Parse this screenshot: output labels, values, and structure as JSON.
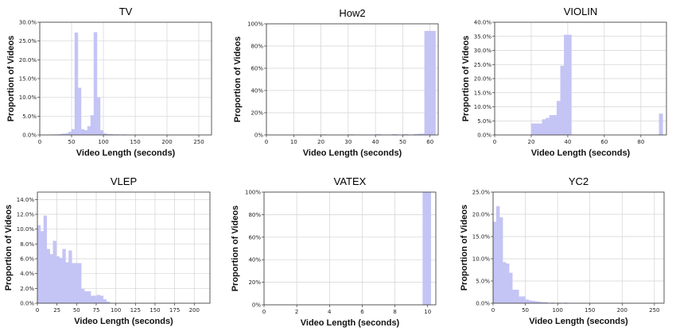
{
  "chart_data": [
    {
      "type": "bar",
      "title": "TV",
      "xlabel": "Video Length (seconds)",
      "ylabel": "Proportion of Videos",
      "xlim": [
        0,
        270
      ],
      "ylim": [
        0,
        0.3
      ],
      "xticks": [
        0,
        50,
        100,
        150,
        200,
        250
      ],
      "yticks": [
        0,
        0.05,
        0.1,
        0.15,
        0.2,
        0.25,
        0.3
      ],
      "ytick_labels": [
        "0.0%",
        "5.0%",
        "10.0%",
        "15.0%",
        "20.0%",
        "25.0%",
        "30.0%"
      ],
      "grid": true,
      "bin_width": 5,
      "bins": [
        {
          "x": 20,
          "value": 0.001
        },
        {
          "x": 25,
          "value": 0.001
        },
        {
          "x": 30,
          "value": 0.002
        },
        {
          "x": 35,
          "value": 0.003
        },
        {
          "x": 40,
          "value": 0.004
        },
        {
          "x": 45,
          "value": 0.008
        },
        {
          "x": 50,
          "value": 0.015
        },
        {
          "x": 55,
          "value": 0.272
        },
        {
          "x": 60,
          "value": 0.125
        },
        {
          "x": 65,
          "value": 0.015
        },
        {
          "x": 70,
          "value": 0.012
        },
        {
          "x": 75,
          "value": 0.023
        },
        {
          "x": 80,
          "value": 0.052
        },
        {
          "x": 85,
          "value": 0.273
        },
        {
          "x": 90,
          "value": 0.1
        },
        {
          "x": 95,
          "value": 0.012
        },
        {
          "x": 100,
          "value": 0.004
        },
        {
          "x": 105,
          "value": 0.002
        },
        {
          "x": 110,
          "value": 0.002
        },
        {
          "x": 115,
          "value": 0.001
        },
        {
          "x": 120,
          "value": 0.001
        },
        {
          "x": 130,
          "value": 0.001
        }
      ]
    },
    {
      "type": "bar",
      "title": "How2",
      "xlabel": "Video Length (seconds)",
      "ylabel": "Proportion of Videos",
      "xlim": [
        0,
        63
      ],
      "ylim": [
        0,
        1.0
      ],
      "xticks": [
        0,
        10,
        20,
        30,
        40,
        50,
        60
      ],
      "yticks": [
        0,
        0.2,
        0.4,
        0.6,
        0.8,
        1.0
      ],
      "ytick_labels": [
        "0%",
        "20%",
        "40%",
        "60%",
        "80%",
        "100%"
      ],
      "grid": true,
      "bin_width": 2,
      "bins": [
        {
          "x": 10,
          "value": 0.002
        },
        {
          "x": 20,
          "value": 0.003
        },
        {
          "x": 30,
          "value": 0.004
        },
        {
          "x": 40,
          "value": 0.005
        },
        {
          "x": 46,
          "value": 0.006
        },
        {
          "x": 50,
          "value": 0.006
        },
        {
          "x": 54,
          "value": 0.007
        },
        {
          "x": 56,
          "value": 0.01
        },
        {
          "x": 58,
          "value": 0.935
        },
        {
          "x": 60,
          "value": 0.935
        }
      ]
    },
    {
      "type": "bar",
      "title": "VIOLIN",
      "xlabel": "Video Length (seconds)",
      "ylabel": "Proportion of Videos",
      "xlim": [
        0,
        94
      ],
      "ylim": [
        0,
        0.4
      ],
      "xticks": [
        0,
        20,
        40,
        60,
        80
      ],
      "yticks": [
        0,
        0.05,
        0.1,
        0.15,
        0.2,
        0.25,
        0.3,
        0.35,
        0.4
      ],
      "ytick_labels": [
        "0.0%",
        "5.0%",
        "10.0%",
        "15.0%",
        "20.0%",
        "25.0%",
        "30.0%",
        "35.0%",
        "40.0%"
      ],
      "grid": true,
      "bin_width": 2,
      "bins": [
        {
          "x": 20,
          "value": 0.04
        },
        {
          "x": 22,
          "value": 0.04
        },
        {
          "x": 24,
          "value": 0.04
        },
        {
          "x": 26,
          "value": 0.055
        },
        {
          "x": 28,
          "value": 0.06
        },
        {
          "x": 30,
          "value": 0.07
        },
        {
          "x": 32,
          "value": 0.07
        },
        {
          "x": 34,
          "value": 0.12
        },
        {
          "x": 36,
          "value": 0.245
        },
        {
          "x": 38,
          "value": 0.355
        },
        {
          "x": 40,
          "value": 0.355
        },
        {
          "x": 90,
          "value": 0.075
        }
      ]
    },
    {
      "type": "bar",
      "title": "VLEP",
      "xlabel": "Video Length (seconds)",
      "ylabel": "Proportion of Videos",
      "xlim": [
        0,
        220
      ],
      "ylim": [
        0,
        0.15
      ],
      "xticks": [
        0,
        25,
        50,
        75,
        100,
        125,
        150,
        175,
        200
      ],
      "yticks": [
        0,
        0.02,
        0.04,
        0.06,
        0.08,
        0.1,
        0.12,
        0.14
      ],
      "ytick_labels": [
        "0.0%",
        "2.0%",
        "4.0%",
        "6.0%",
        "8.0%",
        "10.0%",
        "12.0%",
        "14.0%"
      ],
      "grid": true,
      "bin_width": 4,
      "bins": [
        {
          "x": 0,
          "value": 0.105
        },
        {
          "x": 4,
          "value": 0.097
        },
        {
          "x": 8,
          "value": 0.118
        },
        {
          "x": 12,
          "value": 0.073
        },
        {
          "x": 16,
          "value": 0.066
        },
        {
          "x": 20,
          "value": 0.084
        },
        {
          "x": 24,
          "value": 0.063
        },
        {
          "x": 28,
          "value": 0.061
        },
        {
          "x": 32,
          "value": 0.073
        },
        {
          "x": 36,
          "value": 0.055
        },
        {
          "x": 40,
          "value": 0.071
        },
        {
          "x": 44,
          "value": 0.054
        },
        {
          "x": 48,
          "value": 0.054
        },
        {
          "x": 52,
          "value": 0.054
        },
        {
          "x": 56,
          "value": 0.019
        },
        {
          "x": 60,
          "value": 0.016
        },
        {
          "x": 64,
          "value": 0.016
        },
        {
          "x": 68,
          "value": 0.01
        },
        {
          "x": 72,
          "value": 0.01
        },
        {
          "x": 76,
          "value": 0.011
        },
        {
          "x": 80,
          "value": 0.01
        },
        {
          "x": 84,
          "value": 0.005
        },
        {
          "x": 88,
          "value": 0.002
        }
      ]
    },
    {
      "type": "bar",
      "title": "VATEX",
      "xlabel": "Video Length (seconds)",
      "ylabel": "Proportion of Videos",
      "xlim": [
        0,
        10.5
      ],
      "ylim": [
        0,
        1.0
      ],
      "xticks": [
        0,
        2,
        4,
        6,
        8,
        10
      ],
      "yticks": [
        0,
        0.2,
        0.4,
        0.6,
        0.8,
        1.0
      ],
      "ytick_labels": [
        "0%",
        "20%",
        "40%",
        "60%",
        "80%",
        "100%"
      ],
      "grid": true,
      "bin_width": 0.5,
      "bins": [
        {
          "x": 9.7,
          "value": 1.0
        }
      ]
    },
    {
      "type": "bar",
      "title": "YC2",
      "xlabel": "Video Length (seconds)",
      "ylabel": "Proportion of Videos",
      "xlim": [
        0,
        265
      ],
      "ylim": [
        0,
        0.25
      ],
      "xticks": [
        0,
        50,
        100,
        150,
        200,
        250
      ],
      "yticks": [
        0,
        0.05,
        0.1,
        0.15,
        0.2,
        0.25
      ],
      "ytick_labels": [
        "0.0%",
        "5.0%",
        "10.0%",
        "15.0%",
        "20.0%",
        "25.0%"
      ],
      "grid": true,
      "bin_width": 5,
      "bins": [
        {
          "x": 0,
          "value": 0.183
        },
        {
          "x": 5,
          "value": 0.218
        },
        {
          "x": 10,
          "value": 0.193
        },
        {
          "x": 15,
          "value": 0.092
        },
        {
          "x": 20,
          "value": 0.089
        },
        {
          "x": 25,
          "value": 0.068
        },
        {
          "x": 30,
          "value": 0.03
        },
        {
          "x": 35,
          "value": 0.03
        },
        {
          "x": 40,
          "value": 0.015
        },
        {
          "x": 45,
          "value": 0.015
        },
        {
          "x": 50,
          "value": 0.008
        },
        {
          "x": 55,
          "value": 0.006
        },
        {
          "x": 60,
          "value": 0.005
        },
        {
          "x": 65,
          "value": 0.004
        },
        {
          "x": 70,
          "value": 0.003
        },
        {
          "x": 75,
          "value": 0.002
        },
        {
          "x": 80,
          "value": 0.002
        },
        {
          "x": 90,
          "value": 0.001
        },
        {
          "x": 100,
          "value": 0.001
        },
        {
          "x": 110,
          "value": 0.001
        }
      ]
    }
  ]
}
